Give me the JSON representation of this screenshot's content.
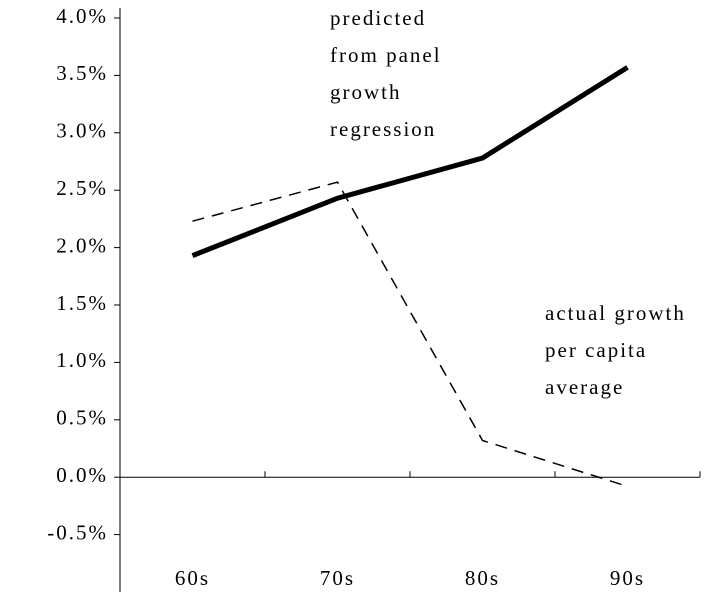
{
  "chart_data": {
    "type": "line",
    "categories": [
      "60s",
      "70s",
      "80s",
      "90s"
    ],
    "series": [
      {
        "color": "#000000",
        "style": "solid",
        "width": 5,
        "values": [
          1.93,
          2.43,
          2.78,
          3.57
        ]
      },
      {
        "color": "#000000",
        "style": "dashed",
        "width": 1.5,
        "values": [
          2.23,
          2.57,
          0.32,
          -0.08
        ]
      }
    ],
    "ylim": [
      -1,
      4.0
    ],
    "yticks": [
      {
        "value": 4.0,
        "label": "4.0%"
      },
      {
        "value": 3.5,
        "label": "3.5%"
      },
      {
        "value": 3.0,
        "label": "3.0%"
      },
      {
        "value": 2.5,
        "label": "2.5%"
      },
      {
        "value": 2.0,
        "label": "2.0%"
      },
      {
        "value": 1.5,
        "label": "1.5%"
      },
      {
        "value": 1.0,
        "label": "1.0%"
      },
      {
        "value": 0.5,
        "label": "0.5%"
      },
      {
        "value": 0,
        "label": "0.0%"
      },
      {
        "value": -0.5,
        "label": "-0.5%"
      }
    ],
    "annotations": [
      [
        "predicted",
        "from panel",
        "growth",
        "regression"
      ],
      [
        "actual growth",
        "per capita",
        "average"
      ]
    ]
  }
}
